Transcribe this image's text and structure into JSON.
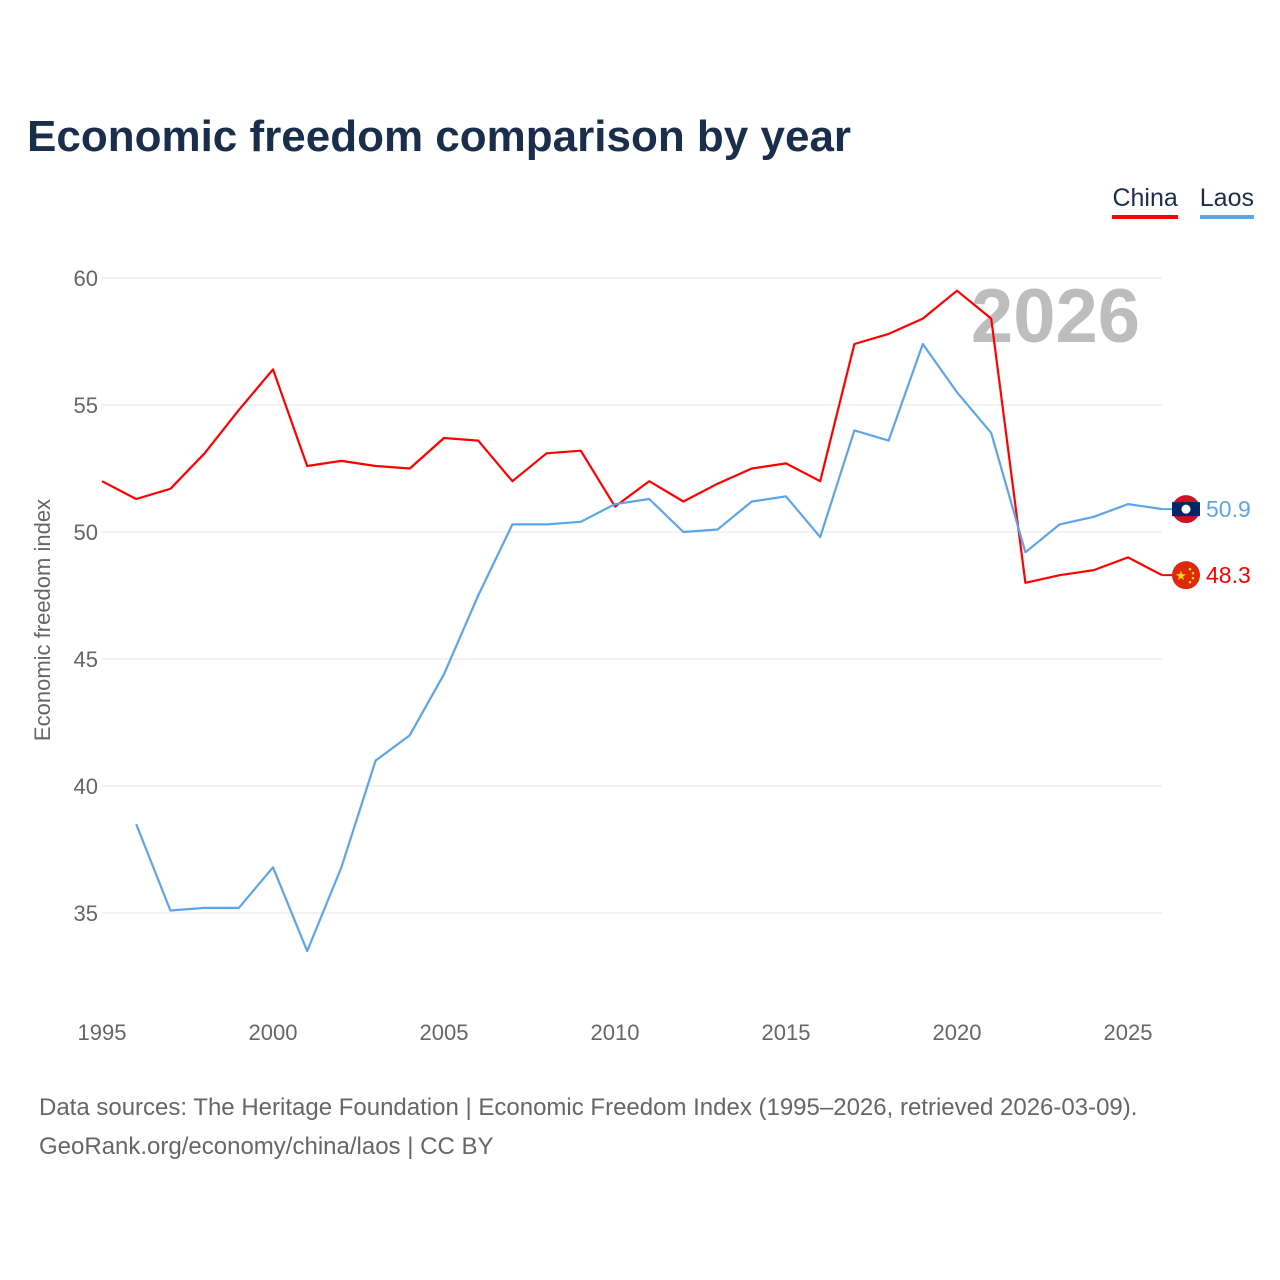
{
  "title": "Economic freedom comparison by year",
  "legend": [
    {
      "label": "China",
      "color": "#ff0000"
    },
    {
      "label": "Laos",
      "color": "#5da5ea"
    }
  ],
  "source_line1": "Data sources: The Heritage Foundation | Economic Freedom Index (1995–2026, retrieved 2026-03-09).",
  "source_line2": "GeoRank.org/economy/china/laos | CC BY",
  "chart_data": {
    "type": "line",
    "title": "Economic freedom comparison by year",
    "xlabel": "",
    "ylabel": "Economic freedom index",
    "watermark_year": "2026",
    "xlim": [
      1995,
      2026
    ],
    "ylim": [
      32,
      61
    ],
    "xticks": [
      1995,
      2000,
      2005,
      2010,
      2015,
      2020,
      2025
    ],
    "yticks": [
      35,
      40,
      45,
      50,
      55,
      60
    ],
    "grid": true,
    "legend_position": "top-right",
    "x": [
      1995,
      1996,
      1997,
      1998,
      1999,
      2000,
      2001,
      2002,
      2003,
      2004,
      2005,
      2006,
      2007,
      2008,
      2009,
      2010,
      2011,
      2012,
      2013,
      2014,
      2015,
      2016,
      2017,
      2018,
      2019,
      2020,
      2021,
      2022,
      2023,
      2024,
      2025,
      2026
    ],
    "series": [
      {
        "name": "China",
        "color": "#ff0000",
        "end_label": "48.3",
        "flag": "china-flag",
        "values": [
          52.0,
          51.3,
          51.7,
          53.1,
          54.8,
          56.4,
          52.6,
          52.8,
          52.6,
          52.5,
          53.7,
          53.6,
          52.0,
          53.1,
          53.2,
          51.0,
          52.0,
          51.2,
          51.9,
          52.5,
          52.7,
          52.0,
          57.4,
          57.8,
          58.4,
          59.5,
          58.4,
          48.0,
          48.3,
          48.5,
          49.0,
          48.3
        ]
      },
      {
        "name": "Laos",
        "color": "#5da5ea",
        "end_label": "50.9",
        "flag": "laos-flag",
        "values": [
          null,
          38.5,
          35.1,
          35.2,
          35.2,
          36.8,
          33.5,
          36.8,
          41.0,
          42.0,
          44.4,
          47.5,
          50.3,
          50.3,
          50.4,
          51.1,
          51.3,
          50.0,
          50.1,
          51.2,
          51.4,
          49.8,
          54.0,
          53.6,
          57.4,
          55.5,
          53.9,
          49.2,
          50.3,
          50.6,
          51.1,
          50.9
        ]
      }
    ]
  }
}
